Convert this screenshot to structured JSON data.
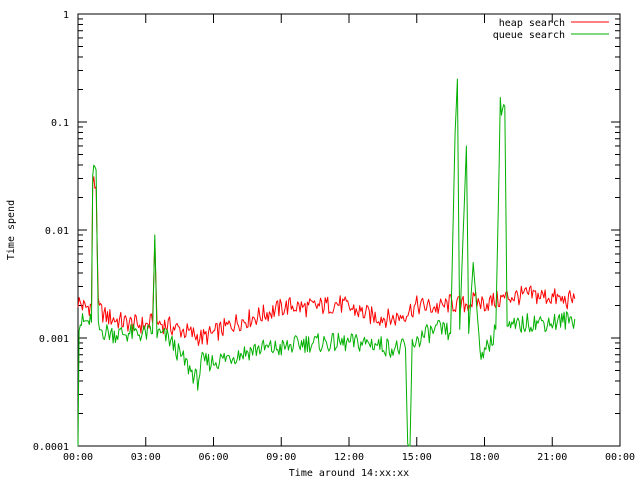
{
  "chart_data": {
    "type": "line",
    "title": "",
    "xlabel": "Time around 14:xx:xx",
    "ylabel": "Time spend",
    "y_scale": "log",
    "ylim": [
      0.0001,
      1
    ],
    "x_unit": "hours",
    "xlim": [
      0,
      24
    ],
    "x_ticks": [
      0,
      3,
      6,
      9,
      12,
      15,
      18,
      21,
      24
    ],
    "x_tick_labels": [
      "00:00",
      "03:00",
      "06:00",
      "09:00",
      "12:00",
      "15:00",
      "18:00",
      "21:00",
      "00:00"
    ],
    "y_ticks": [
      0.0001,
      0.001,
      0.01,
      0.1,
      1
    ],
    "y_tick_labels": [
      "0.0001",
      "0.001",
      "0.01",
      "0.1",
      "1"
    ],
    "grid": false,
    "legend_position": "top-right",
    "series": [
      {
        "name": "heap search",
        "color": "#ff0000",
        "points": [
          [
            0.0,
            0.0022
          ],
          [
            0.3,
            0.0019
          ],
          [
            0.6,
            0.002
          ],
          [
            0.65,
            0.028
          ],
          [
            0.8,
            0.025
          ],
          [
            0.9,
            0.0019
          ],
          [
            1.2,
            0.0016
          ],
          [
            2.0,
            0.0014
          ],
          [
            3.0,
            0.0013
          ],
          [
            3.3,
            0.0014
          ],
          [
            3.4,
            0.008
          ],
          [
            3.5,
            0.0014
          ],
          [
            4.0,
            0.0013
          ],
          [
            4.5,
            0.0012
          ],
          [
            5.0,
            0.0011
          ],
          [
            5.5,
            0.001
          ],
          [
            6.0,
            0.0011
          ],
          [
            7.0,
            0.0014
          ],
          [
            8.0,
            0.0016
          ],
          [
            9.0,
            0.0019
          ],
          [
            9.5,
            0.002
          ],
          [
            10.0,
            0.0019
          ],
          [
            11.0,
            0.002
          ],
          [
            11.5,
            0.0021
          ],
          [
            12.0,
            0.0019
          ],
          [
            13.0,
            0.0016
          ],
          [
            14.0,
            0.0015
          ],
          [
            14.5,
            0.0017
          ],
          [
            15.0,
            0.002
          ],
          [
            16.0,
            0.0019
          ],
          [
            16.5,
            0.0021
          ],
          [
            17.0,
            0.002
          ],
          [
            17.5,
            0.0022
          ],
          [
            18.0,
            0.0021
          ],
          [
            18.5,
            0.0022
          ],
          [
            19.0,
            0.0024
          ],
          [
            20.0,
            0.0025
          ],
          [
            21.0,
            0.0024
          ],
          [
            21.5,
            0.0022
          ],
          [
            22.0,
            0.0023
          ]
        ]
      },
      {
        "name": "queue search",
        "color": "#00b000",
        "points": [
          [
            0.0,
            0.0001
          ],
          [
            0.05,
            0.0014
          ],
          [
            0.3,
            0.0014
          ],
          [
            0.6,
            0.0014
          ],
          [
            0.65,
            0.036
          ],
          [
            0.8,
            0.036
          ],
          [
            0.9,
            0.0012
          ],
          [
            1.5,
            0.0011
          ],
          [
            2.5,
            0.0011
          ],
          [
            3.3,
            0.0011
          ],
          [
            3.4,
            0.009
          ],
          [
            3.5,
            0.0011
          ],
          [
            4.0,
            0.001
          ],
          [
            4.5,
            0.0007
          ],
          [
            5.0,
            0.0005
          ],
          [
            5.3,
            0.0004
          ],
          [
            5.5,
            0.0006
          ],
          [
            6.0,
            0.0006
          ],
          [
            7.0,
            0.0007
          ],
          [
            8.0,
            0.0008
          ],
          [
            9.0,
            0.0008
          ],
          [
            10.0,
            0.0009
          ],
          [
            11.0,
            0.0009
          ],
          [
            12.0,
            0.0009
          ],
          [
            13.0,
            0.0009
          ],
          [
            14.0,
            0.0008
          ],
          [
            14.5,
            0.0008
          ],
          [
            14.6,
            0.0001
          ],
          [
            14.7,
            0.0001
          ],
          [
            14.8,
            0.0009
          ],
          [
            15.5,
            0.0011
          ],
          [
            16.0,
            0.0012
          ],
          [
            16.5,
            0.0011
          ],
          [
            16.7,
            0.08
          ],
          [
            16.8,
            0.25
          ],
          [
            16.9,
            0.0012
          ],
          [
            17.2,
            0.06
          ],
          [
            17.3,
            0.0011
          ],
          [
            17.5,
            0.005
          ],
          [
            17.8,
            0.0008
          ],
          [
            18.0,
            0.0007
          ],
          [
            18.5,
            0.0012
          ],
          [
            18.7,
            0.14
          ],
          [
            18.9,
            0.14
          ],
          [
            19.0,
            0.0012
          ],
          [
            20.0,
            0.0014
          ],
          [
            21.0,
            0.0014
          ],
          [
            22.0,
            0.0015
          ]
        ]
      }
    ]
  }
}
